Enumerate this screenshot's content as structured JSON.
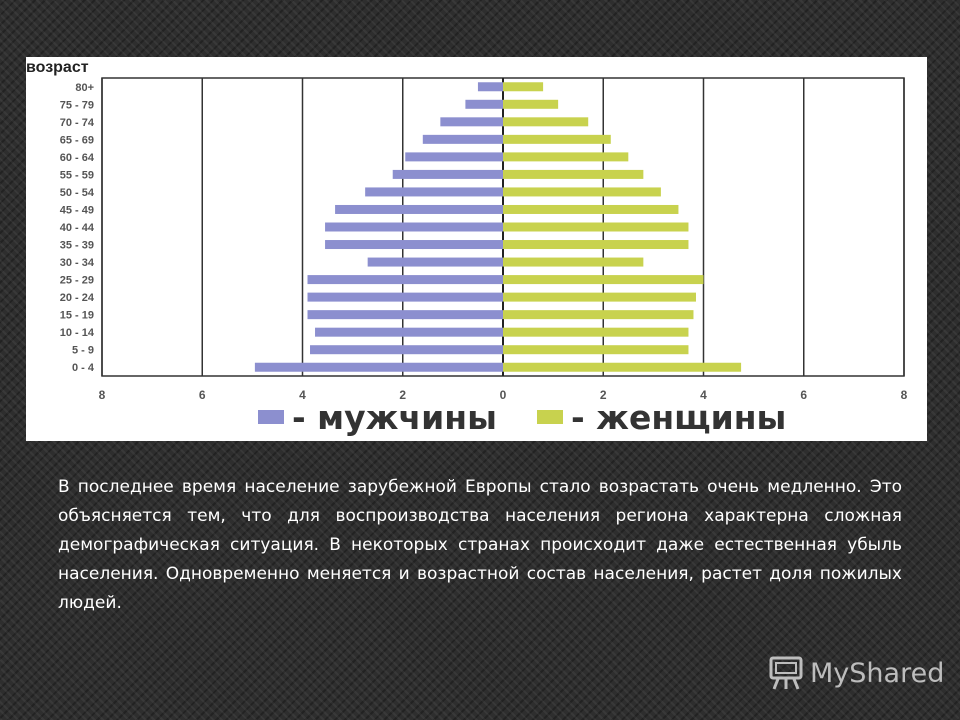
{
  "chart_data": {
    "type": "bar",
    "subtype": "population-pyramid",
    "ylabel": "возраст",
    "categories": [
      "80+",
      "75 - 79",
      "70 - 74",
      "65 - 69",
      "60 - 64",
      "55 - 59",
      "50 - 54",
      "45 - 49",
      "40 - 44",
      "35 - 39",
      "30 - 34",
      "25 - 29",
      "20 - 24",
      "15 - 19",
      "10 - 14",
      "5 - 9",
      "0 - 4"
    ],
    "series": [
      {
        "name": "- мужчины",
        "color": "#8c8fcf",
        "side": "left",
        "values": [
          0.5,
          0.75,
          1.25,
          1.6,
          1.95,
          2.2,
          2.75,
          3.35,
          3.55,
          3.55,
          2.7,
          3.9,
          3.9,
          3.9,
          3.75,
          3.85,
          4.95
        ]
      },
      {
        "name": "- женщины",
        "color": "#c8d24e",
        "side": "right",
        "values": [
          0.8,
          1.1,
          1.7,
          2.15,
          2.5,
          2.8,
          3.15,
          3.5,
          3.7,
          3.7,
          2.8,
          4.0,
          3.85,
          3.8,
          3.7,
          3.7,
          4.75
        ]
      }
    ],
    "xlim": [
      -8,
      8
    ],
    "xticks": [
      "8",
      "6",
      "4",
      "2",
      "0",
      "2",
      "4",
      "6",
      "8"
    ],
    "grid": true,
    "legend": "bottom"
  },
  "paragraph": "В последнее время население зарубежной Европы стало возрастать очень медленно. Это объясняется тем, что для воспроизводства населения региона характерна сложная демографическая ситуация. В некоторых странах происходит даже естественная убыль населения. Одновременно меняется и возрастной состав населения, растет доля пожилых людей.",
  "logo": {
    "text": "MyShared",
    "icon": "projector-icon"
  }
}
